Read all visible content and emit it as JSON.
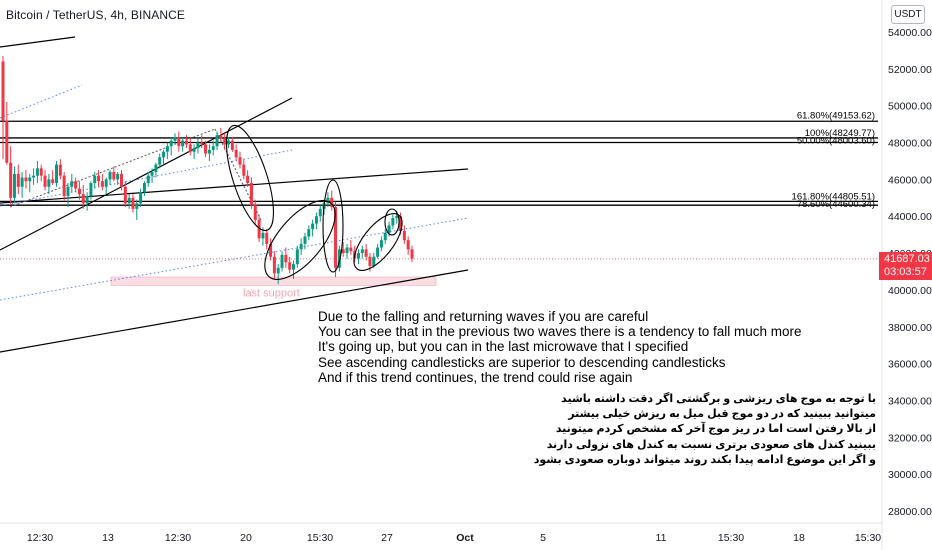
{
  "header": {
    "symbol_title": "Bitcoin / TetherUS, 4h, BINANCE",
    "currency_badge": "USDT"
  },
  "colors": {
    "up": "#089981",
    "down": "#f23645",
    "axis_text": "#131722",
    "fib_line": "#000000",
    "channel_line": "#000000",
    "dotted_channel": "#2962ff",
    "support_zone": "#f8c8d0",
    "support_label": "#f7a4b2"
  },
  "price_label": {
    "price": "41687.03",
    "countdown": "03:03:57"
  },
  "annotations": {
    "support_label": "last support",
    "english": [
      "Due to the falling and returning waves if you are careful",
      "You can see that in the previous two waves there is a tendency to fall much more",
      "It's going up, but you can in the last microwave that I specified",
      "See ascending candlesticks are superior to descending candlesticks",
      "And if this trend continues, the trend could rise again"
    ],
    "persian": [
      "با توجه به موج های ریزشی و برگشتی اگر دقت داشته باشید",
      "میتوانید ببینید که در دو موج قبل میل به ریزش خیلی بیشتر",
      "از بالا رفتن است اما در ریز موج آخر که مشخص کردم میتونید",
      "ببینید کندل های صعودی برتری نسبت به کندل های نزولی دارند",
      "و اگر این موضوع ادامه پیدا بکند روند میتواند دوباره صعودی بشود"
    ],
    "fib_labels": [
      {
        "text": "61.80%(49153.62)",
        "price": 49153.62
      },
      {
        "text": "100%(48249.77)",
        "price": 48249.77
      },
      {
        "text": "50.00%(48003.60)",
        "price": 48003.6
      },
      {
        "text": "161.80%(44805.51)",
        "price": 44805.51
      },
      {
        "text": "78.60%(44600.34)",
        "price": 44600.34
      }
    ]
  },
  "chart_data": {
    "type": "candlestick",
    "title": "Bitcoin / TetherUS, 4h, BINANCE",
    "y_axis": {
      "ylim": [
        27000,
        55000
      ],
      "ticks": [
        "54000.00",
        "52000.00",
        "50000.00",
        "48000.00",
        "46000.00",
        "44000.00",
        "42000.00",
        "40000.00",
        "38000.00",
        "36000.00",
        "34000.00",
        "32000.00",
        "30000.00",
        "28000.00"
      ],
      "tick_values": [
        54000,
        52000,
        50000,
        48000,
        46000,
        44000,
        42000,
        40000,
        38000,
        36000,
        34000,
        32000,
        30000,
        28000
      ]
    },
    "x_axis": {
      "tick_labels": [
        "12:30",
        "13",
        "12:30",
        "20",
        "15:30",
        "27",
        "Oct",
        "5",
        "11",
        "15:30",
        "18",
        "15:30"
      ]
    },
    "last_price": 41687.03,
    "candles_ohlc": [
      [
        52400,
        52700,
        47100,
        49200
      ],
      [
        49200,
        50200,
        46800,
        46900
      ],
      [
        46900,
        47800,
        44600,
        45000
      ],
      [
        45000,
        46700,
        44700,
        46300
      ],
      [
        46300,
        46800,
        45200,
        45600
      ],
      [
        45600,
        46400,
        45000,
        46100
      ],
      [
        46100,
        46500,
        45500,
        45900
      ],
      [
        45900,
        46300,
        45300,
        46100
      ],
      [
        46100,
        46600,
        45700,
        46200
      ],
      [
        46200,
        47000,
        45800,
        46600
      ],
      [
        46600,
        46800,
        45900,
        46200
      ],
      [
        46200,
        46500,
        45400,
        45600
      ],
      [
        45600,
        46300,
        45200,
        46000
      ],
      [
        46000,
        46500,
        45700,
        45800
      ],
      [
        45800,
        47000,
        45600,
        46800
      ],
      [
        46800,
        47100,
        46000,
        46200
      ],
      [
        46200,
        46400,
        44800,
        45100
      ],
      [
        45100,
        45800,
        44500,
        45600
      ],
      [
        45600,
        46300,
        45300,
        45900
      ],
      [
        45900,
        46100,
        45300,
        45500
      ],
      [
        45500,
        45900,
        44900,
        45200
      ],
      [
        45200,
        45700,
        44400,
        44700
      ],
      [
        44700,
        45300,
        44300,
        45100
      ],
      [
        45100,
        45900,
        44900,
        45800
      ],
      [
        45800,
        46400,
        45500,
        46200
      ],
      [
        46200,
        46500,
        45600,
        45900
      ],
      [
        45900,
        46300,
        45400,
        45600
      ],
      [
        45600,
        46100,
        45200,
        46000
      ],
      [
        46000,
        46500,
        45700,
        46400
      ],
      [
        46400,
        46700,
        45900,
        46000
      ],
      [
        46000,
        46400,
        45700,
        46300
      ],
      [
        46300,
        46500,
        45400,
        45600
      ],
      [
        45600,
        45900,
        44500,
        44700
      ],
      [
        44700,
        45200,
        44400,
        45000
      ],
      [
        45000,
        45200,
        44200,
        44400
      ],
      [
        44400,
        44900,
        43800,
        44700
      ],
      [
        44700,
        45500,
        44500,
        45300
      ],
      [
        45300,
        45900,
        45100,
        45800
      ],
      [
        45800,
        46400,
        45600,
        46200
      ],
      [
        46200,
        46600,
        45800,
        46400
      ],
      [
        46400,
        46900,
        46100,
        46800
      ],
      [
        46800,
        47400,
        46600,
        47200
      ],
      [
        47200,
        47600,
        46800,
        47500
      ],
      [
        47500,
        48000,
        47100,
        47800
      ],
      [
        47800,
        48300,
        47300,
        48100
      ],
      [
        48100,
        48500,
        47900,
        48300
      ],
      [
        48300,
        48600,
        47500,
        47800
      ],
      [
        47800,
        48300,
        47500,
        48100
      ],
      [
        48100,
        48400,
        47700,
        47900
      ],
      [
        47900,
        48200,
        47300,
        47500
      ],
      [
        47500,
        47900,
        47100,
        47700
      ],
      [
        47700,
        48200,
        47400,
        48000
      ],
      [
        48000,
        48400,
        47700,
        47900
      ],
      [
        47900,
        48100,
        47200,
        47400
      ],
      [
        47400,
        47900,
        47000,
        47600
      ],
      [
        47600,
        48100,
        47300,
        47800
      ],
      [
        47800,
        48600,
        47600,
        48400
      ],
      [
        48400,
        48800,
        48000,
        48200
      ],
      [
        48200,
        48500,
        47600,
        47900
      ],
      [
        47900,
        48300,
        47700,
        48100
      ],
      [
        48100,
        48300,
        47500,
        47600
      ],
      [
        47600,
        47900,
        47000,
        47200
      ],
      [
        47200,
        47500,
        46600,
        46800
      ],
      [
        46800,
        47100,
        46000,
        46200
      ],
      [
        46200,
        46500,
        45600,
        45800
      ],
      [
        45800,
        46100,
        44400,
        44600
      ],
      [
        44600,
        44900,
        43600,
        43800
      ],
      [
        43800,
        44100,
        42600,
        42800
      ],
      [
        42800,
        43400,
        42400,
        43100
      ],
      [
        43100,
        43300,
        42200,
        42500
      ],
      [
        42500,
        42800,
        41600,
        41800
      ],
      [
        41800,
        42100,
        40600,
        40900
      ],
      [
        40900,
        41400,
        40300,
        41200
      ],
      [
        41200,
        42100,
        41000,
        41900
      ],
      [
        41900,
        42300,
        41200,
        41500
      ],
      [
        41500,
        41800,
        40900,
        41100
      ],
      [
        41100,
        41600,
        40600,
        41400
      ],
      [
        41400,
        42400,
        41200,
        42200
      ],
      [
        42200,
        42800,
        41900,
        42500
      ],
      [
        42500,
        43100,
        42200,
        42900
      ],
      [
        42900,
        43500,
        42700,
        43300
      ],
      [
        43300,
        43800,
        42900,
        43600
      ],
      [
        43600,
        44200,
        43300,
        44000
      ],
      [
        44000,
        44600,
        43700,
        44400
      ],
      [
        44400,
        44900,
        44100,
        44700
      ],
      [
        44700,
        45300,
        44500,
        45000
      ],
      [
        45000,
        45400,
        44300,
        44500
      ],
      [
        44500,
        44800,
        40700,
        41200
      ],
      [
        41200,
        42400,
        41000,
        42200
      ],
      [
        42200,
        42600,
        41800,
        42000
      ],
      [
        42000,
        42500,
        41700,
        42300
      ],
      [
        42300,
        42700,
        41900,
        42100
      ],
      [
        42100,
        42400,
        41500,
        41700
      ],
      [
        41700,
        42200,
        41400,
        42000
      ],
      [
        42000,
        42400,
        41700,
        42200
      ],
      [
        42200,
        42500,
        41600,
        41800
      ],
      [
        41800,
        42000,
        41000,
        41300
      ],
      [
        41300,
        42000,
        41200,
        41800
      ],
      [
        41800,
        42500,
        41700,
        42300
      ],
      [
        42300,
        42900,
        42100,
        42700
      ],
      [
        42700,
        43300,
        42500,
        43100
      ],
      [
        43100,
        43700,
        42900,
        43500
      ],
      [
        43500,
        44100,
        43300,
        43900
      ],
      [
        43900,
        44300,
        43600,
        44000
      ],
      [
        44000,
        44200,
        43000,
        43200
      ],
      [
        43200,
        43500,
        42500,
        42700
      ],
      [
        42700,
        42900,
        41900,
        42200
      ],
      [
        42200,
        42400,
        41500,
        41700
      ]
    ],
    "fib_levels": [
      49153.62,
      48249.77,
      48003.6,
      44805.51,
      44600.34
    ],
    "support_zone": {
      "low": 40250,
      "high": 40700,
      "label": "last support"
    }
  }
}
